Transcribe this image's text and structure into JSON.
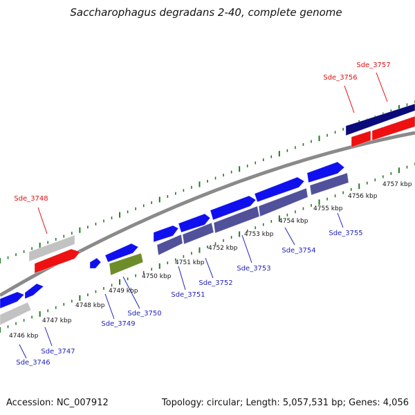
{
  "title": "Saccharophagus degradans 2-40, complete genome",
  "footer": {
    "accession": "Accession: NC_007912",
    "summary": "Topology: circular; Length: 5,057,531 bp; Genes: 4,056"
  },
  "colors": {
    "tick": "#1e7b1e",
    "backbone": "#8a8a8a",
    "forward_label": "#dd1111",
    "reverse_label": "#1f1fbb",
    "blue": "#1010ee",
    "slate": "#51509a",
    "navy": "#0a0a7a",
    "red": "#ee1111",
    "grey": "#c2c2c2",
    "olive": "#6e8d2a"
  },
  "scale_labels": [
    "4746 kbp",
    "4747 kbp",
    "4748 kbp",
    "4749 kbp",
    "4750 kbp",
    "4751 kbp",
    "4752 kbp",
    "4753 kbp",
    "4754 kbp",
    "4755 kbp",
    "4756 kbp",
    "4757 kbp"
  ],
  "gene_labels": {
    "forward": [
      "Sde_3748",
      "Sde_3756",
      "Sde_3757"
    ],
    "reverse": [
      "Sde_3746",
      "Sde_3747",
      "Sde_3749",
      "Sde_3750",
      "Sde_3751",
      "Sde_3752",
      "Sde_3753",
      "Sde_3754",
      "Sde_3755"
    ]
  }
}
